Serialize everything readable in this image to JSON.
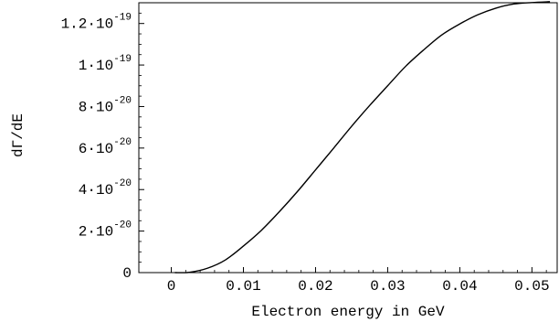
{
  "chart_data": {
    "type": "line",
    "title": "",
    "xlabel": "Electron energy in GeV",
    "ylabel": "dΓ/dE",
    "xlim": [
      -0.0045,
      0.0535
    ],
    "ylim": [
      0,
      1.3e-19
    ],
    "grid": false,
    "x_ticks": [
      {
        "value": 0,
        "label": "0"
      },
      {
        "value": 0.01,
        "label": "0.01"
      },
      {
        "value": 0.02,
        "label": "0.02"
      },
      {
        "value": 0.03,
        "label": "0.03"
      },
      {
        "value": 0.04,
        "label": "0.04"
      },
      {
        "value": 0.05,
        "label": "0.05"
      }
    ],
    "y_ticks": [
      {
        "value": 0,
        "mantissa": "0",
        "exp": ""
      },
      {
        "value": 2e-20,
        "mantissa": "2·10",
        "exp": "-20"
      },
      {
        "value": 4e-20,
        "mantissa": "4·10",
        "exp": "-20"
      },
      {
        "value": 6e-20,
        "mantissa": "6·10",
        "exp": "-20"
      },
      {
        "value": 8e-20,
        "mantissa": "8·10",
        "exp": "-20"
      },
      {
        "value": 1e-19,
        "mantissa": "1·10",
        "exp": "-19"
      },
      {
        "value": 1.2e-19,
        "mantissa": "1.2·10",
        "exp": "-19"
      }
    ],
    "series": [
      {
        "x": [
          0.0005,
          0.0025,
          0.005,
          0.0075,
          0.01,
          0.0125,
          0.015,
          0.0175,
          0.02,
          0.0225,
          0.025,
          0.0275,
          0.03,
          0.0325,
          0.035,
          0.0375,
          0.04,
          0.0425,
          0.045,
          0.0475,
          0.05,
          0.0525
        ],
        "y": [
          0.0,
          1.5e-22,
          2.1e-21,
          6.1e-21,
          1.28e-20,
          2.04e-20,
          2.94e-20,
          3.91e-20,
          4.95e-20,
          5.99e-20,
          7.05e-20,
          8.05e-20,
          9e-20,
          9.94e-20,
          1.073e-19,
          1.145e-19,
          1.198e-19,
          1.242e-19,
          1.274e-19,
          1.294e-19,
          1.301e-19,
          1.305e-19
        ],
        "color": "#000000"
      }
    ]
  }
}
